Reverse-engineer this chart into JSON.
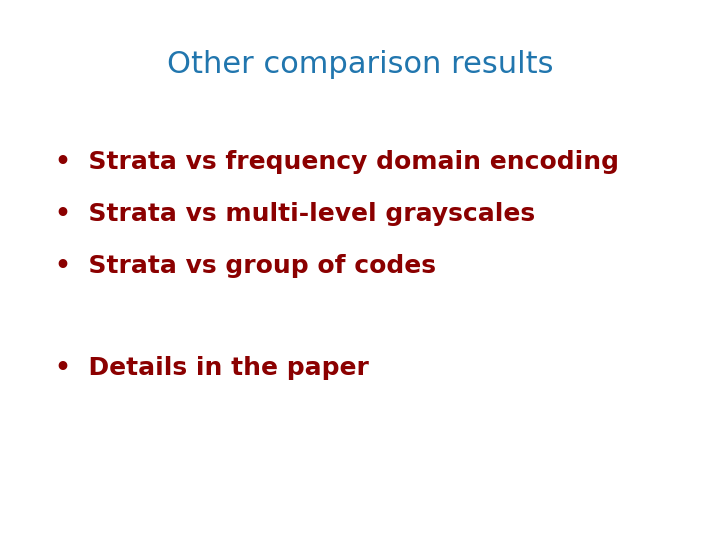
{
  "title": "Other comparison results",
  "title_color": "#2176AE",
  "title_fontsize": 22,
  "title_fontweight": "normal",
  "bullet_color": "#8B0000",
  "bullet_fontsize": 18,
  "bullet_fontweight": "bold",
  "background_color": "#ffffff",
  "bullets_group1": [
    "Strata vs frequency domain encoding",
    "Strata vs multi-level grayscales",
    "Strata vs group of codes"
  ],
  "bullets_group2": [
    "Details in the paper"
  ],
  "bullet_char": "•"
}
